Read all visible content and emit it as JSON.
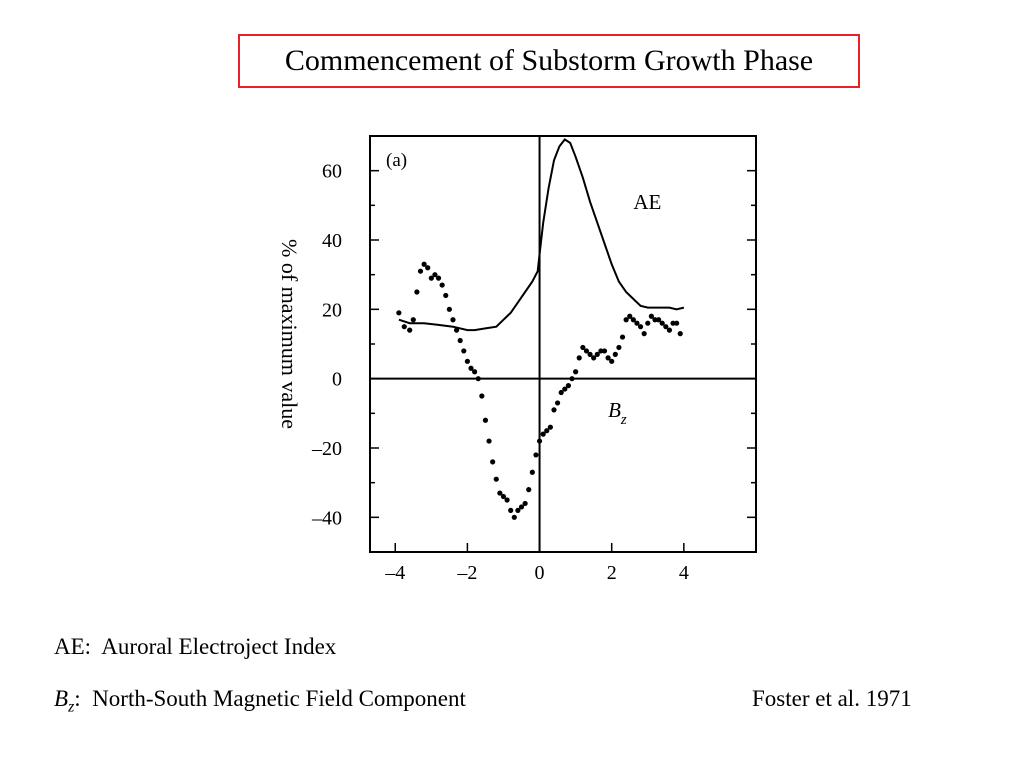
{
  "page": {
    "title": "Commencement of Substorm Growth Phase",
    "definitions": [
      {
        "symbol": "AE",
        "symbol_sub": "",
        "separator": ":",
        "text": "Auroral Electroject Index"
      },
      {
        "symbol": "B",
        "symbol_sub": "z",
        "separator": ":",
        "text": "North-South Magnetic Field Component"
      }
    ],
    "citation": "Foster et  al. 1971"
  },
  "chart_data": {
    "type": "line",
    "panel_label": "(a)",
    "ylabel": "% of maximum value",
    "xlabel": "",
    "xlim": [
      -4.7,
      6.0
    ],
    "ylim": [
      -50,
      70
    ],
    "x_ticks": [
      -4,
      -2,
      0,
      2,
      4
    ],
    "x_tick_labels": [
      "–4",
      "–2",
      "0",
      "2",
      "4"
    ],
    "y_ticks": [
      -40,
      -20,
      0,
      20,
      40,
      60
    ],
    "y_tick_labels": [
      "–40",
      "–20",
      "0",
      "20",
      "40",
      "60"
    ],
    "zero_lines": true,
    "grid": false,
    "series": [
      {
        "name": "AE",
        "style": "solid",
        "color": "#000000",
        "x": [
          -3.9,
          -3.6,
          -3.2,
          -2.8,
          -2.4,
          -2.0,
          -1.8,
          -1.5,
          -1.2,
          -1.0,
          -0.8,
          -0.6,
          -0.4,
          -0.2,
          -0.05,
          0.0,
          0.1,
          0.25,
          0.4,
          0.55,
          0.7,
          0.85,
          1.0,
          1.2,
          1.4,
          1.6,
          1.8,
          2.0,
          2.2,
          2.4,
          2.6,
          2.8,
          3.0,
          3.2,
          3.4,
          3.6,
          3.8,
          4.0
        ],
        "y": [
          17,
          16,
          16,
          15.5,
          15,
          14,
          14,
          14.5,
          15,
          17,
          19,
          22,
          25,
          28,
          31,
          36,
          45,
          55,
          63,
          67,
          69,
          68,
          64,
          58,
          51,
          45,
          39,
          33,
          28,
          25,
          23,
          21,
          20.5,
          20.5,
          20.5,
          20.5,
          20,
          20.5
        ]
      },
      {
        "name": "B",
        "name_sub": "z",
        "style": "dotted",
        "color": "#000000",
        "x": [
          -3.9,
          -3.75,
          -3.6,
          -3.5,
          -3.4,
          -3.3,
          -3.2,
          -3.1,
          -3.0,
          -2.9,
          -2.8,
          -2.7,
          -2.6,
          -2.5,
          -2.4,
          -2.3,
          -2.2,
          -2.1,
          -2.0,
          -1.9,
          -1.8,
          -1.7,
          -1.6,
          -1.5,
          -1.4,
          -1.3,
          -1.2,
          -1.1,
          -1.0,
          -0.9,
          -0.8,
          -0.7,
          -0.6,
          -0.5,
          -0.4,
          -0.3,
          -0.2,
          -0.1,
          0.0,
          0.1,
          0.2,
          0.3,
          0.4,
          0.5,
          0.6,
          0.7,
          0.8,
          0.9,
          1.0,
          1.1,
          1.2,
          1.3,
          1.4,
          1.5,
          1.6,
          1.7,
          1.8,
          1.9,
          2.0,
          2.1,
          2.2,
          2.3,
          2.4,
          2.5,
          2.6,
          2.7,
          2.8,
          2.9,
          3.0,
          3.1,
          3.2,
          3.3,
          3.4,
          3.5,
          3.6,
          3.7,
          3.8,
          3.9
        ],
        "y": [
          19,
          15,
          14,
          17,
          25,
          31,
          33,
          32,
          29,
          30,
          29,
          27,
          24,
          20,
          17,
          14,
          11,
          8,
          5,
          3,
          2,
          0,
          -5,
          -12,
          -18,
          -24,
          -29,
          -33,
          -34,
          -35,
          -38,
          -40,
          -38,
          -37,
          -36,
          -32,
          -27,
          -22,
          -18,
          -16,
          -15,
          -14,
          -9,
          -7,
          -4,
          -3,
          -2,
          0,
          2,
          6,
          9,
          8,
          7,
          6,
          7,
          8,
          8,
          6,
          5,
          7,
          9,
          12,
          17,
          18,
          17,
          16,
          15,
          13,
          16,
          18,
          17,
          17,
          16,
          15,
          14,
          16,
          16,
          13
        ]
      }
    ],
    "annotations": [
      {
        "text": "AE",
        "sub": "",
        "series": "AE",
        "x": 2.6,
        "y": 49
      },
      {
        "text": "B",
        "sub": "z",
        "series": "Bz",
        "x": 1.9,
        "y": -11
      }
    ]
  }
}
